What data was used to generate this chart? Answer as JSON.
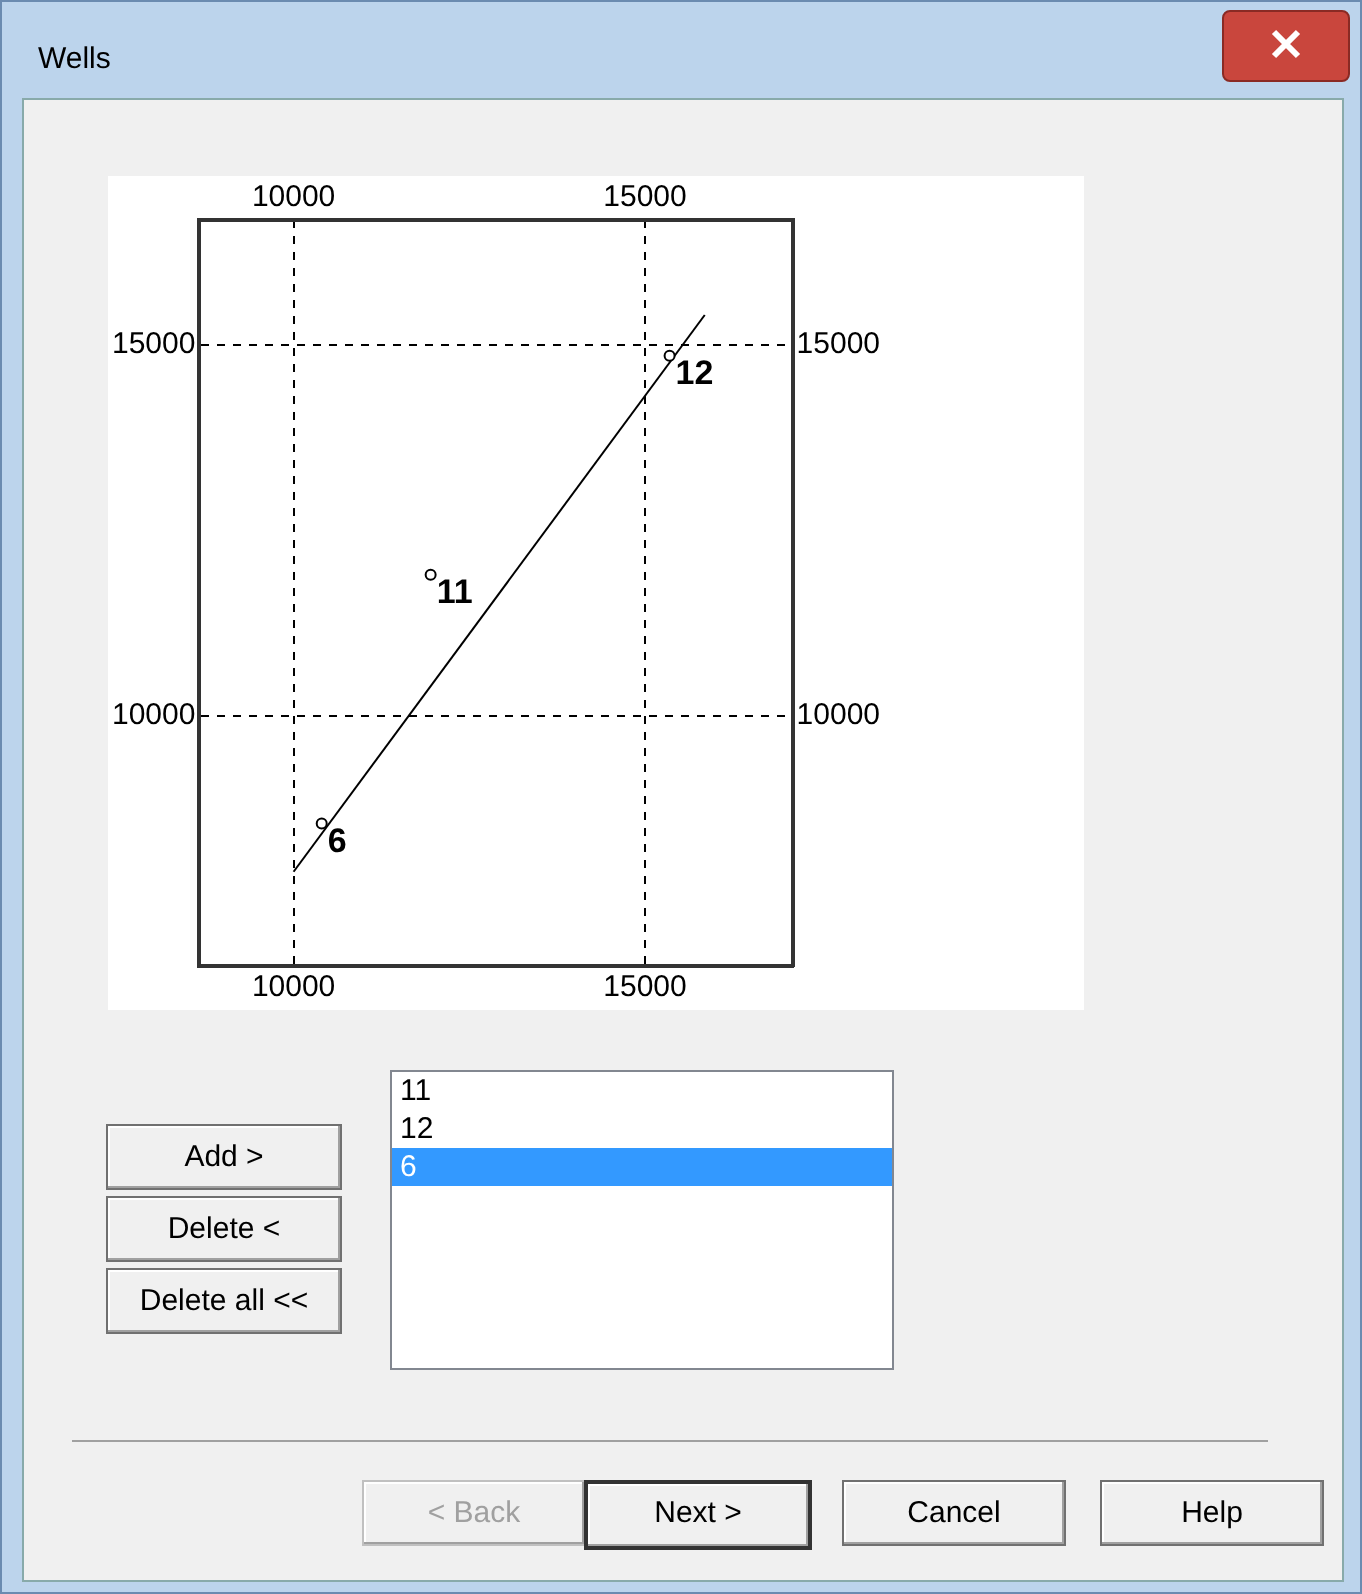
{
  "chart_data": {
    "type": "scatter",
    "title": "Wells",
    "series": [
      {
        "type": "scatter",
        "x": [
          10400,
          11950,
          15350
        ],
        "values": [
          8550,
          11900,
          14850
        ],
        "color": "#000000",
        "marker": "circle"
      },
      {
        "type": "line",
        "x": [
          10000,
          15850
        ],
        "values": [
          7900,
          15400
        ],
        "color": "#000000",
        "marker": "none"
      }
    ],
    "xlim": [
      8660,
      17100
    ],
    "xticks": [
      10000,
      15000
    ],
    "x2lim": [
      8660,
      17100
    ],
    "x2ticks": [
      10000,
      15000
    ],
    "ylim": [
      6630,
      16680
    ],
    "yticks": [
      10000,
      15000
    ],
    "y2lim": [
      6630,
      16680
    ],
    "y2ticks": [
      10000,
      15000
    ],
    "grid": true,
    "legend": false,
    "line_style": "solid",
    "annotations": [
      {
        "text": "6",
        "x": 10400,
        "y": 8550
      },
      {
        "text": "11",
        "x": 11950,
        "y": 11900
      },
      {
        "text": "12",
        "x": 15350,
        "y": 14850
      },
      "11",
      "12",
      "6",
      "Add >",
      "Delete <",
      "Delete all <<",
      "< Back",
      "Next >",
      "Cancel",
      "Help"
    ]
  }
}
